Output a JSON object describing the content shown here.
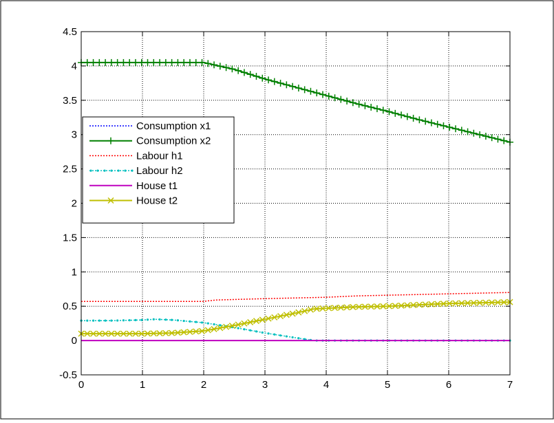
{
  "chart_data": {
    "type": "line",
    "title": "",
    "xlabel": "",
    "ylabel": "",
    "xlim": [
      0,
      7
    ],
    "ylim": [
      -0.5,
      4.5
    ],
    "xticks": [
      "0",
      "1",
      "2",
      "3",
      "4",
      "5",
      "6",
      "7"
    ],
    "yticks": [
      "-0.5",
      "0",
      "0.5",
      "1",
      "1.5",
      "2",
      "2.5",
      "3",
      "3.5",
      "4",
      "4.5"
    ],
    "grid": true,
    "legend_position": "left",
    "series": [
      {
        "name": "Consumption x1",
        "color": "#0000ff",
        "style": "dotted",
        "marker": "none",
        "x": [
          0,
          2,
          2.5,
          3,
          3.5,
          4,
          4.5,
          5,
          5.5,
          6,
          6.5,
          7
        ],
        "y": [
          4.05,
          4.05,
          3.95,
          3.81,
          3.69,
          3.57,
          3.45,
          3.34,
          3.22,
          3.11,
          3.0,
          2.89
        ]
      },
      {
        "name": "Consumption x2",
        "color": "#008000",
        "style": "solid",
        "marker": "plus",
        "x": [
          0,
          2,
          2.5,
          3,
          3.5,
          4,
          4.5,
          5,
          5.5,
          6,
          6.5,
          7
        ],
        "y": [
          4.05,
          4.05,
          3.95,
          3.81,
          3.69,
          3.57,
          3.45,
          3.34,
          3.22,
          3.11,
          3.0,
          2.89
        ]
      },
      {
        "name": "Labour h1",
        "color": "#ff0000",
        "style": "dotted",
        "marker": "none",
        "x": [
          0,
          2,
          2.2,
          3,
          3.5,
          4,
          4.5,
          5,
          5.5,
          6,
          6.5,
          7
        ],
        "y": [
          0.57,
          0.57,
          0.59,
          0.61,
          0.62,
          0.63,
          0.65,
          0.66,
          0.67,
          0.68,
          0.69,
          0.7
        ]
      },
      {
        "name": "Labour h2",
        "color": "#00bfbf",
        "style": "dotted",
        "marker": "dot",
        "x": [
          0,
          0.5,
          1,
          1.2,
          1.5,
          2,
          2.5,
          3,
          3.5,
          3.8,
          4,
          5,
          6,
          7
        ],
        "y": [
          0.29,
          0.29,
          0.3,
          0.31,
          0.3,
          0.26,
          0.19,
          0.11,
          0.04,
          0.0,
          0.0,
          0.0,
          0.0,
          0.0
        ]
      },
      {
        "name": "House t1",
        "color": "#bf00bf",
        "style": "solid",
        "marker": "none",
        "x": [
          0,
          7
        ],
        "y": [
          0.0,
          0.0
        ]
      },
      {
        "name": "House t2",
        "color": "#bfbf00",
        "style": "solid",
        "marker": "x",
        "x": [
          0,
          0.5,
          1,
          1.5,
          2,
          2.5,
          3,
          3.5,
          3.8,
          4,
          4.5,
          5,
          5.5,
          6,
          6.5,
          7
        ],
        "y": [
          0.1,
          0.1,
          0.1,
          0.11,
          0.14,
          0.22,
          0.31,
          0.4,
          0.46,
          0.47,
          0.49,
          0.5,
          0.52,
          0.54,
          0.55,
          0.56
        ]
      }
    ]
  }
}
